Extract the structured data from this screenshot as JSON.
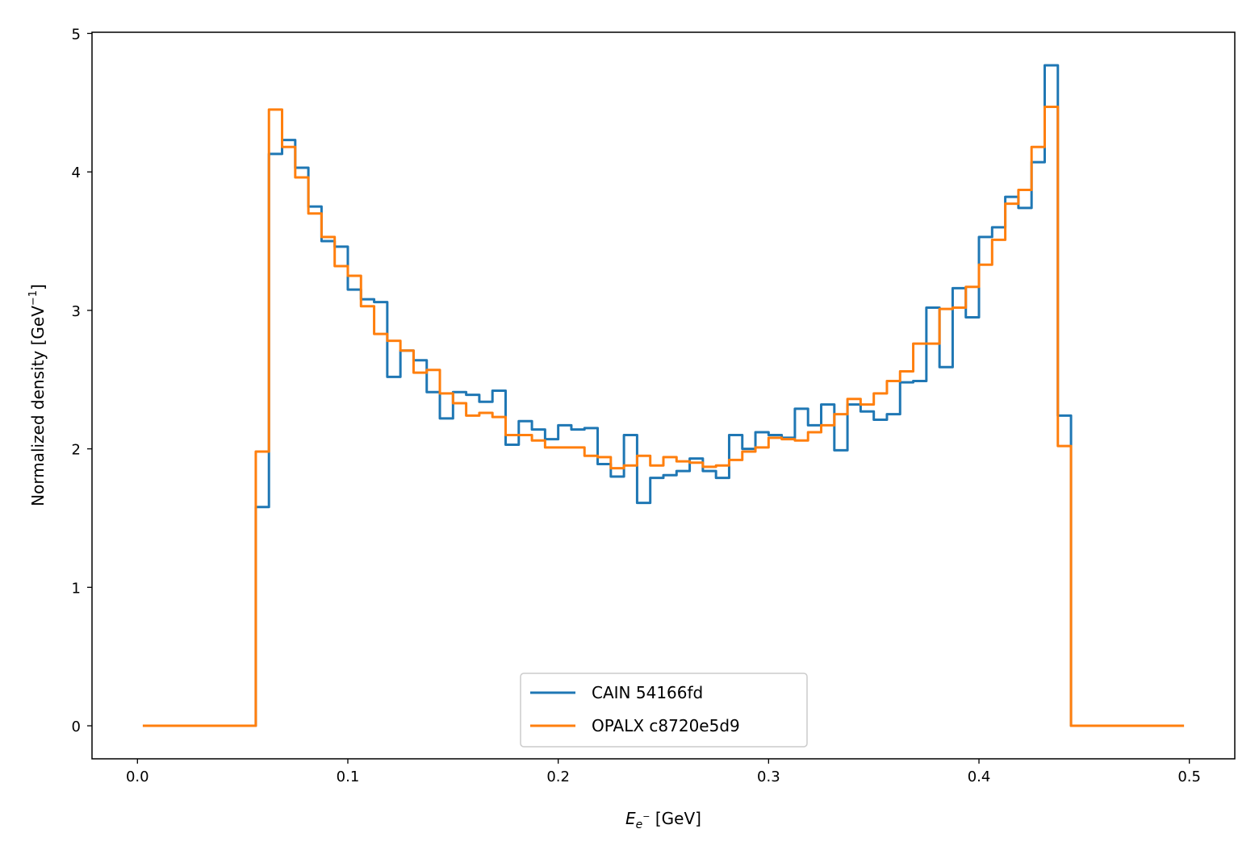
{
  "chart_data": {
    "type": "line",
    "style": "step histogram",
    "title": "",
    "xlabel": "E_{e⁻} [GeV]",
    "xlabel_parts": {
      "main": "E",
      "sub": "e",
      "sup": "−",
      "unit": " [GeV]"
    },
    "ylabel": "Normalized density [GeV⁻¹]",
    "ylabel_parts": {
      "main": "Normalized density [GeV",
      "sup": "−1",
      "end": "]"
    },
    "xlim": [
      -0.0216,
      0.5216
    ],
    "ylim": [
      -0.2385,
      5.0085
    ],
    "xticks": [
      "0.0",
      "0.1",
      "0.2",
      "0.3",
      "0.4",
      "0.5"
    ],
    "xtick_values": [
      0.0,
      0.1,
      0.2,
      0.3,
      0.4,
      0.5
    ],
    "yticks": [
      "0",
      "1",
      "2",
      "3",
      "4",
      "5"
    ],
    "ytick_values": [
      0,
      1,
      2,
      3,
      4,
      5
    ],
    "bins": {
      "range": [
        0.0,
        0.5
      ],
      "count": 80
    },
    "grid": false,
    "legend_position": "bottom-center",
    "series": [
      {
        "name": "CAIN 54166fd",
        "color": "#1f77b4",
        "values": [
          0,
          0,
          0,
          0,
          0,
          0,
          0,
          0,
          0,
          1.58,
          4.13,
          4.23,
          4.03,
          3.75,
          3.5,
          3.46,
          3.15,
          3.08,
          3.06,
          2.52,
          2.71,
          2.64,
          2.41,
          2.22,
          2.41,
          2.39,
          2.34,
          2.42,
          2.03,
          2.2,
          2.14,
          2.07,
          2.17,
          2.14,
          2.15,
          1.89,
          1.8,
          2.1,
          1.61,
          1.79,
          1.81,
          1.84,
          1.93,
          1.84,
          1.79,
          2.1,
          2.0,
          2.12,
          2.1,
          2.08,
          2.29,
          2.17,
          2.32,
          1.99,
          2.32,
          2.27,
          2.21,
          2.25,
          2.48,
          2.49,
          3.02,
          2.59,
          3.16,
          2.95,
          3.53,
          3.6,
          3.82,
          3.74,
          4.07,
          4.77,
          2.24,
          0,
          0,
          0,
          0,
          0,
          0,
          0,
          0,
          0
        ]
      },
      {
        "name": "OPALX c8720e5d9",
        "color": "#ff7f0e",
        "values": [
          0,
          0,
          0,
          0,
          0,
          0,
          0,
          0,
          0,
          1.98,
          4.45,
          4.18,
          3.96,
          3.7,
          3.53,
          3.32,
          3.25,
          3.03,
          2.83,
          2.78,
          2.71,
          2.55,
          2.57,
          2.4,
          2.33,
          2.24,
          2.26,
          2.23,
          2.1,
          2.1,
          2.06,
          2.01,
          2.01,
          2.01,
          1.95,
          1.94,
          1.86,
          1.88,
          1.95,
          1.88,
          1.94,
          1.91,
          1.9,
          1.87,
          1.88,
          1.92,
          1.98,
          2.01,
          2.08,
          2.07,
          2.06,
          2.12,
          2.17,
          2.25,
          2.36,
          2.32,
          2.4,
          2.49,
          2.56,
          2.76,
          2.76,
          3.01,
          3.02,
          3.17,
          3.33,
          3.51,
          3.77,
          3.87,
          4.18,
          4.47,
          2.02,
          0,
          0,
          0,
          0,
          0,
          0,
          0,
          0,
          0
        ]
      }
    ]
  }
}
